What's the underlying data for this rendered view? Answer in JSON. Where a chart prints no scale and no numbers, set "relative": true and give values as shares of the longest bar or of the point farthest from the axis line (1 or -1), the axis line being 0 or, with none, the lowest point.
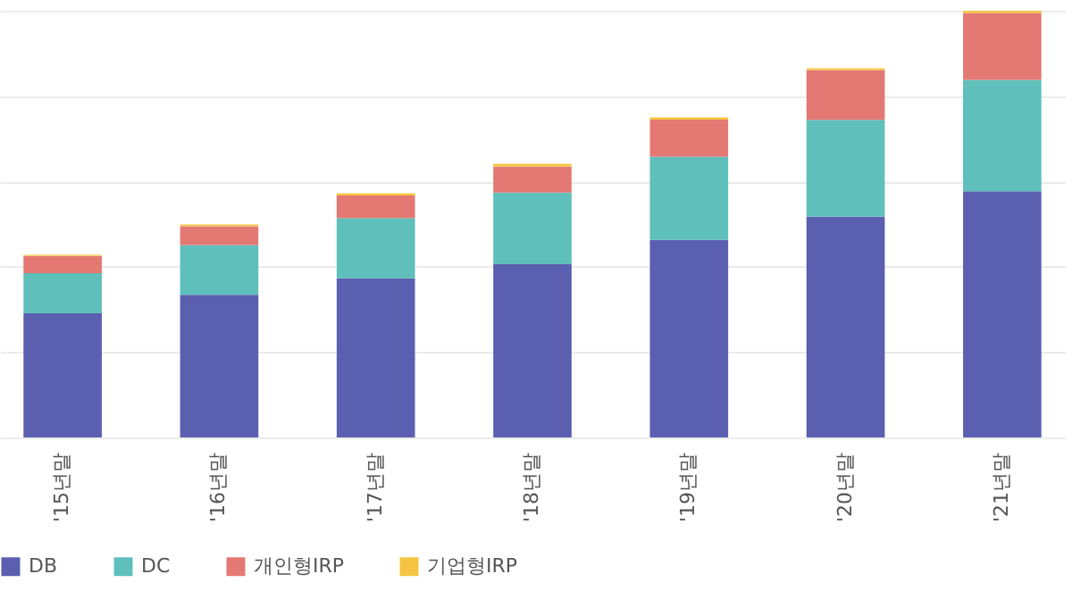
{
  "chart_data": {
    "type": "bar",
    "stacked": true,
    "relative": true,
    "grid": "y",
    "legend": "bottom",
    "categories": [
      "'15년말",
      "'16년말",
      "'17년말",
      "'18년말",
      "'19년말",
      "'20년말",
      "'21년말"
    ],
    "series": [
      {
        "name": "DB",
        "color": "#5b5fb0",
        "values": [
          0.291,
          0.334,
          0.373,
          0.406,
          0.463,
          0.517,
          0.577
        ]
      },
      {
        "name": "DC",
        "color": "#5fbfbb",
        "values": [
          0.094,
          0.117,
          0.141,
          0.168,
          0.195,
          0.227,
          0.261
        ]
      },
      {
        "name": "개인형IRP",
        "color": "#e47872",
        "values": [
          0.04,
          0.044,
          0.053,
          0.061,
          0.087,
          0.117,
          0.157
        ]
      },
      {
        "name": "기업형IRP",
        "color": "#f5c542",
        "values": [
          0.003,
          0.004,
          0.005,
          0.006,
          0.005,
          0.004,
          0.005
        ]
      }
    ]
  }
}
